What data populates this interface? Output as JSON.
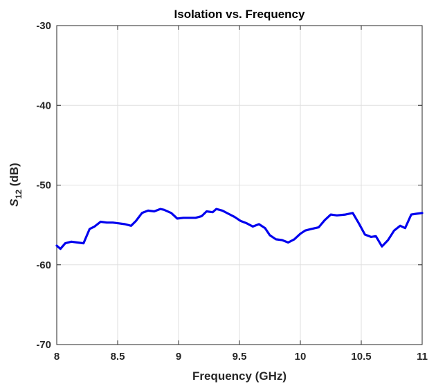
{
  "chart_data": {
    "type": "line",
    "title": "Isolation vs. Frequency",
    "xlabel": "Frequency (GHz)",
    "ylabel_main": "S",
    "ylabel_sub": "12",
    "ylabel_rest": " (dB)",
    "xlim": [
      8,
      11
    ],
    "ylim": [
      -70,
      -30
    ],
    "xticks": [
      8,
      8.5,
      9,
      9.5,
      10,
      10.5,
      11
    ],
    "xtick_labels": [
      "8",
      "8.5",
      "9",
      "9.5",
      "10",
      "10.5",
      "11"
    ],
    "yticks": [
      -30,
      -40,
      -50,
      -60,
      -70
    ],
    "ytick_labels": [
      "-30",
      "-40",
      "-50",
      "-60",
      "-70"
    ],
    "grid": true,
    "line_color": "#0000ee",
    "series": [
      {
        "x": [
          8.0,
          8.03,
          8.07,
          8.12,
          8.17,
          8.22,
          8.27,
          8.31,
          8.36,
          8.41,
          8.46,
          8.51,
          8.56,
          8.61,
          8.65,
          8.7,
          8.75,
          8.8,
          8.85,
          8.88,
          8.94,
          8.99,
          9.04,
          9.09,
          9.14,
          9.19,
          9.23,
          9.28,
          9.31,
          9.36,
          9.41,
          9.46,
          9.51,
          9.56,
          9.61,
          9.66,
          9.71,
          9.75,
          9.8,
          9.85,
          9.9,
          9.95,
          10.0,
          10.04,
          10.09,
          10.15,
          10.2,
          10.25,
          10.3,
          10.37,
          10.43,
          10.48,
          10.53,
          10.58,
          10.62,
          10.67,
          10.72,
          10.77,
          10.82,
          10.86,
          10.91,
          10.95,
          11.0
        ],
        "y": [
          -57.6,
          -58.0,
          -57.3,
          -57.1,
          -57.2,
          -57.3,
          -55.5,
          -55.2,
          -54.6,
          -54.7,
          -54.7,
          -54.8,
          -54.9,
          -55.1,
          -54.5,
          -53.5,
          -53.2,
          -53.3,
          -53.0,
          -53.1,
          -53.5,
          -54.2,
          -54.1,
          -54.1,
          -54.1,
          -53.9,
          -53.3,
          -53.4,
          -53.0,
          -53.2,
          -53.6,
          -54.0,
          -54.5,
          -54.8,
          -55.2,
          -54.9,
          -55.4,
          -56.3,
          -56.8,
          -56.9,
          -57.2,
          -56.8,
          -56.1,
          -55.7,
          -55.5,
          -55.3,
          -54.4,
          -53.7,
          -53.8,
          -53.7,
          -53.5,
          -54.8,
          -56.2,
          -56.5,
          -56.4,
          -57.7,
          -56.9,
          -55.7,
          -55.1,
          -55.4,
          -53.7,
          -53.6,
          -53.5
        ]
      }
    ]
  }
}
